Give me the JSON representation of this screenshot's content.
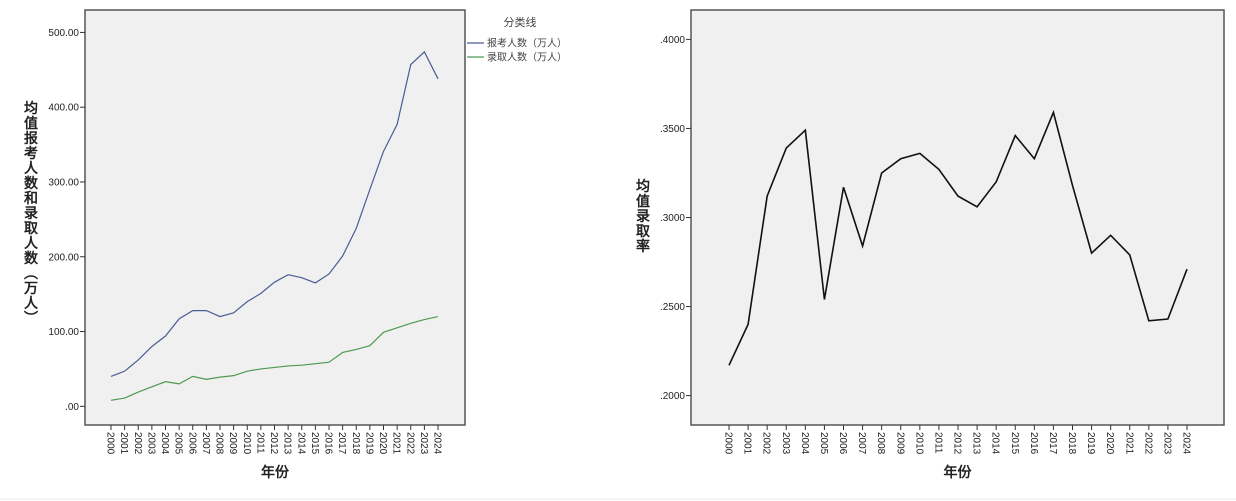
{
  "chart_data": [
    {
      "type": "line",
      "title": "",
      "xlabel": "年份",
      "ylabel": "均值报考人数和录取人数（万人）",
      "ylim": [
        -25,
        530
      ],
      "yticks": [
        ".00",
        "100.00",
        "200.00",
        "300.00",
        "400.00",
        "500.00"
      ],
      "ytick_values": [
        0,
        100,
        200,
        300,
        400,
        500
      ],
      "legend_title": "分类线",
      "legend_position": "top-right outside",
      "grid": false,
      "x": [
        "2000",
        "2001",
        "2002",
        "2003",
        "2004",
        "2005",
        "2006",
        "2007",
        "2008",
        "2009",
        "2010",
        "2011",
        "2012",
        "2013",
        "2014",
        "2015",
        "2016",
        "2017",
        "2018",
        "2019",
        "2020",
        "2021",
        "2022",
        "2023",
        "2024"
      ],
      "series": [
        {
          "name": "报考人数（万人）",
          "color": "#4a5d94",
          "values": [
            40,
            47,
            62,
            80,
            94,
            117,
            128,
            128,
            120,
            125,
            140,
            151,
            166,
            176,
            172,
            165,
            177,
            201,
            238,
            290,
            341,
            377,
            457,
            474,
            438
          ]
        },
        {
          "name": "录取人数（万人）",
          "color": "#4f9a50",
          "values": [
            8,
            11,
            19,
            26,
            33,
            30,
            40,
            36,
            39,
            41,
            47,
            50,
            52,
            54,
            55,
            57,
            59,
            72,
            76,
            81,
            99,
            105,
            111,
            116,
            120
          ]
        }
      ]
    },
    {
      "type": "line",
      "title": "",
      "xlabel": "年份",
      "ylabel": "均值录取率",
      "ylim": [
        0.1835,
        0.4165
      ],
      "yticks": [
        ".2000",
        ".2500",
        ".3000",
        ".3500",
        ".4000"
      ],
      "ytick_values": [
        0.2,
        0.25,
        0.3,
        0.35,
        0.4
      ],
      "grid": false,
      "x": [
        "2000",
        "2001",
        "2002",
        "2003",
        "2004",
        "2005",
        "2006",
        "2007",
        "2008",
        "2009",
        "2010",
        "2011",
        "2012",
        "2013",
        "2014",
        "2015",
        "2016",
        "2017",
        "2018",
        "2019",
        "2020",
        "2021",
        "2022",
        "2023",
        "2024"
      ],
      "series": [
        {
          "color": "#111111",
          "values": [
            0.217,
            0.24,
            0.312,
            0.339,
            0.349,
            0.254,
            0.317,
            0.284,
            0.325,
            0.333,
            0.336,
            0.327,
            0.312,
            0.306,
            0.32,
            0.346,
            0.333,
            0.359,
            0.318,
            0.28,
            0.29,
            0.279,
            0.242,
            0.243,
            0.271
          ]
        }
      ]
    }
  ]
}
